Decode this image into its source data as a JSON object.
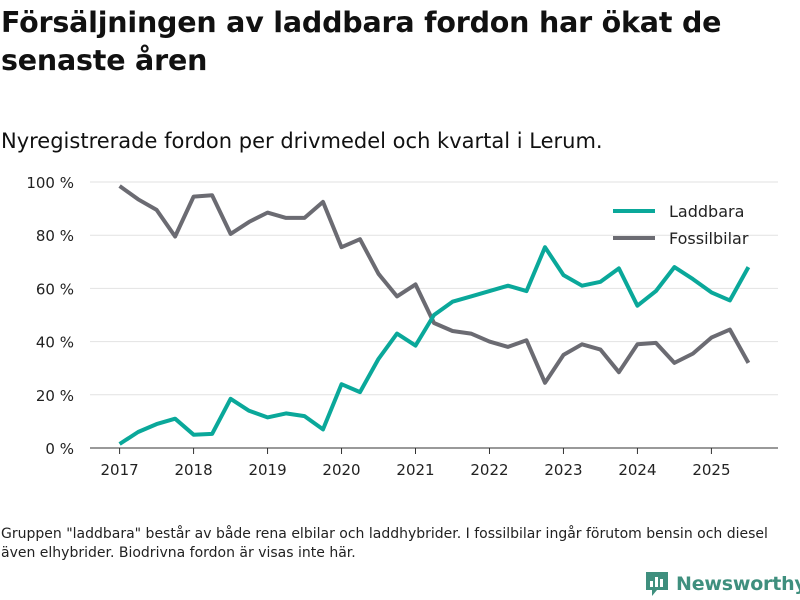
{
  "header": {
    "title": "Försäljningen av laddbara fordon har ökat de senaste åren",
    "subtitle": "Nyregistrerade fordon per drivmedel och kvartal i Lerum."
  },
  "footer": {
    "note": "Gruppen \"laddbara\" består av både rena elbilar och laddhybrider. I fossilbilar ingår förutom bensin och diesel även elhybrider. Biodrivna fordon är visas inte här.",
    "brand": "Newsworthy"
  },
  "colors": {
    "laddbara": "#0aa89a",
    "fossil": "#6b6b72",
    "grid": "#e2e2e2",
    "brand": "#3f8f7e"
  },
  "chart_data": {
    "type": "line",
    "title": "Nyregistrerade fordon per drivmedel och kvartal i Lerum.",
    "xlabel": "",
    "ylabel": "",
    "ylim": [
      0,
      100
    ],
    "yticks": [
      0,
      20,
      40,
      60,
      80,
      100
    ],
    "ytick_labels": [
      "0 %",
      "20 %",
      "40 %",
      "60 %",
      "80 %",
      "100 %"
    ],
    "xlim": [
      2016.6,
      2025.9
    ],
    "xticks": [
      2017,
      2018,
      2019,
      2020,
      2021,
      2022,
      2023,
      2024,
      2025
    ],
    "xtick_labels": [
      "2017",
      "2018",
      "2019",
      "2020",
      "2021",
      "2022",
      "2023",
      "2024",
      "2025"
    ],
    "legend_position": "top-right",
    "x": [
      2017.0,
      2017.25,
      2017.5,
      2017.75,
      2018.0,
      2018.25,
      2018.5,
      2018.75,
      2019.0,
      2019.25,
      2019.5,
      2019.75,
      2020.0,
      2020.25,
      2020.5,
      2020.75,
      2021.0,
      2021.25,
      2021.5,
      2021.75,
      2022.0,
      2022.25,
      2022.5,
      2022.75,
      2023.0,
      2023.25,
      2023.5,
      2023.75,
      2024.0,
      2024.25,
      2024.5,
      2024.75,
      2025.0,
      2025.25,
      2025.5
    ],
    "series": [
      {
        "name": "Laddbara",
        "color_key": "laddbara",
        "values": [
          1.5,
          6,
          9,
          11,
          5,
          5.3,
          18.5,
          14,
          11.5,
          13,
          12,
          7,
          24,
          21,
          33.5,
          43,
          38.5,
          50,
          55,
          57,
          59,
          61,
          59,
          75.5,
          65,
          61,
          62.5,
          67.5,
          53.5,
          59,
          68,
          63.5,
          58.5,
          55.5,
          68
        ]
      },
      {
        "name": "Fossilbilar",
        "color_key": "fossil",
        "values": [
          98.5,
          93.5,
          89.5,
          79.5,
          94.5,
          95,
          80.5,
          85,
          88.5,
          86.5,
          86.5,
          92.5,
          75.5,
          78.5,
          65.5,
          57,
          61.5,
          47,
          44,
          43,
          40,
          38,
          40.5,
          24.5,
          35,
          39,
          37,
          28.5,
          39,
          39.5,
          32,
          35.5,
          41.5,
          44.5,
          32
        ]
      }
    ]
  }
}
